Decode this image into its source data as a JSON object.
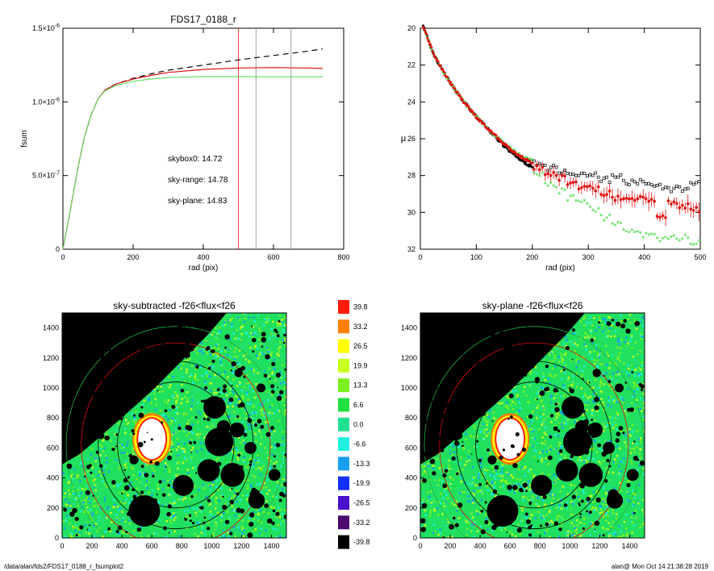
{
  "footer": {
    "left": "/data/alan/fds2/FDS17_0188_r_fsumplot2",
    "right": "alan@  Mon Oct 14 21:38:28 2019"
  },
  "colors": {
    "sky_range": "#e01010",
    "sky_plane": "#66e066",
    "skybox0": "#000000",
    "image_bg": "#000000"
  },
  "chart_data": [
    {
      "type": "line",
      "title": "FDS17_0188_r",
      "xlabel": "rad (pix)",
      "ylabel": "fsum",
      "xlim": [
        0,
        800
      ],
      "ylim": [
        0,
        1.5e-06
      ],
      "x_ticks": [
        "0",
        "200",
        "400",
        "600",
        "800"
      ],
      "y_ticks": [
        {
          "value": 0,
          "mant": "0",
          "exp": ""
        },
        {
          "value": 5e-07,
          "mant": "5.0×10",
          "exp": "-7"
        },
        {
          "value": 1e-06,
          "mant": "1.0×10",
          "exp": "-6"
        },
        {
          "value": 1.5e-06,
          "mant": "1.5×10",
          "exp": "-6"
        }
      ],
      "annotations": [
        {
          "text": "skybox0: 14.72",
          "color": "#000000"
        },
        {
          "text": "sky-range: 14.78",
          "color": "#e01010"
        },
        {
          "text": "sky-plane: 14.83",
          "color": "#66e066"
        }
      ],
      "vlines": [
        {
          "x": 500,
          "color": "#e01010"
        },
        {
          "x": 550,
          "color": "#888888"
        },
        {
          "x": 650,
          "color": "#888888"
        }
      ],
      "series": [
        {
          "style": "dashed",
          "color": "#000000",
          "x": [
            0,
            20,
            40,
            60,
            80,
            100,
            120,
            150,
            200,
            250,
            300,
            400,
            500,
            600,
            700,
            740
          ],
          "y": [
            0,
            2.5e-07,
            5.2e-07,
            7.5e-07,
            9.1e-07,
            1.02e-06,
            1.08e-06,
            1.12e-06,
            1.16e-06,
            1.19e-06,
            1.215e-06,
            1.25e-06,
            1.285e-06,
            1.315e-06,
            1.345e-06,
            1.36e-06
          ]
        },
        {
          "style": "solid",
          "color": "#e01010",
          "x": [
            0,
            20,
            40,
            60,
            80,
            100,
            120,
            150,
            200,
            250,
            300,
            400,
            500,
            600,
            700,
            740
          ],
          "y": [
            0,
            2.5e-07,
            5.2e-07,
            7.5e-07,
            9.1e-07,
            1.02e-06,
            1.08e-06,
            1.12e-06,
            1.155e-06,
            1.18e-06,
            1.2e-06,
            1.22e-06,
            1.23e-06,
            1.233e-06,
            1.23e-06,
            1.227e-06
          ]
        },
        {
          "style": "solid",
          "color": "#66e066",
          "x": [
            0,
            20,
            40,
            60,
            80,
            100,
            120,
            150,
            200,
            250,
            300,
            400,
            500,
            600,
            700,
            740
          ],
          "y": [
            0,
            2.5e-07,
            5.2e-07,
            7.5e-07,
            9.1e-07,
            1.02e-06,
            1.075e-06,
            1.11e-06,
            1.14e-06,
            1.155e-06,
            1.165e-06,
            1.172e-06,
            1.172e-06,
            1.17e-06,
            1.17e-06,
            1.17e-06
          ]
        }
      ]
    },
    {
      "type": "scatter",
      "title": "",
      "xlabel": "rad (pix)",
      "ylabel": "μ",
      "xlim": [
        0,
        500
      ],
      "ylim": [
        32,
        20
      ],
      "x_ticks": [
        "0",
        "100",
        "200",
        "300",
        "400",
        "500"
      ],
      "y_ticks": [
        "20",
        "22",
        "24",
        "26",
        "28",
        "30",
        "32"
      ],
      "profile": {
        "x": [
          5,
          25,
          50,
          75,
          100,
          125,
          150,
          175,
          200
        ],
        "y": [
          19.9,
          21.5,
          22.8,
          23.9,
          24.8,
          25.6,
          26.3,
          26.9,
          27.3
        ]
      },
      "series": [
        {
          "marker": "square",
          "color": "#000000",
          "x": [
            210,
            230,
            250,
            270,
            290,
            310,
            330,
            350,
            370,
            390,
            410,
            430,
            450,
            470,
            490
          ],
          "y": [
            27.3,
            27.6,
            27.7,
            27.9,
            27.9,
            28.0,
            28.2,
            28.1,
            28.4,
            28.3,
            28.5,
            28.6,
            28.7,
            28.7,
            28.5
          ]
        },
        {
          "marker": "circle-errbar",
          "color": "#e01010",
          "x": [
            210,
            230,
            250,
            270,
            290,
            310,
            330,
            350,
            370,
            390,
            410,
            430,
            450,
            470,
            490
          ],
          "y": [
            27.6,
            27.9,
            28.1,
            28.4,
            28.6,
            28.7,
            29.0,
            29.2,
            29.1,
            29.3,
            29.4,
            30.2,
            29.4,
            29.7,
            29.8
          ]
        },
        {
          "marker": "circle",
          "color": "#66e066",
          "x": [
            210,
            230,
            250,
            270,
            290,
            310,
            330,
            350,
            370,
            390,
            410,
            430,
            450,
            470,
            490
          ],
          "y": [
            28.0,
            28.4,
            28.8,
            29.2,
            29.5,
            29.8,
            30.3,
            30.6,
            30.9,
            31.2,
            31.1,
            31.5,
            31.3,
            31.4,
            31.6
          ]
        }
      ]
    },
    {
      "type": "heatmap",
      "title": "sky-subtracted -f26<flux<f26",
      "xlim": [
        0,
        1500
      ],
      "ylim": [
        0,
        1500
      ],
      "x_ticks": [
        "0",
        "200",
        "400",
        "600",
        "800",
        "1000",
        "1200",
        "1400"
      ],
      "y_ticks": [
        "0",
        "200",
        "400",
        "600",
        "800",
        "1000",
        "1200",
        "1400"
      ]
    },
    {
      "type": "heatmap",
      "title": "sky-plane -f26<flux<f26",
      "xlim": [
        0,
        1500
      ],
      "ylim": [
        0,
        1500
      ],
      "x_ticks": [
        "0",
        "200",
        "400",
        "600",
        "800",
        "1000",
        "1200",
        "1400"
      ],
      "y_ticks": [
        "0",
        "200",
        "400",
        "600",
        "800",
        "1000",
        "1200",
        "1400"
      ]
    }
  ],
  "colorbar": {
    "labels": [
      "39.8",
      "33.2",
      "26.5",
      "19.9",
      "13.3",
      "6.6",
      "0.0",
      "-6.6",
      "-13.3",
      "-19.9",
      "-26.5",
      "-33.2",
      "-39.8"
    ],
    "colors": [
      "#ff1a0a",
      "#ff7f00",
      "#ffff00",
      "#c8ff20",
      "#7df020",
      "#20e040",
      "#20e090",
      "#20f0e0",
      "#18a0f0",
      "#1430ff",
      "#4a10c8",
      "#4a0a6e",
      "#000000"
    ]
  },
  "galaxy": {
    "center": [
      760,
      620
    ],
    "mask_ellipse_radii": [
      1.0,
      1.33,
      1.62,
      1.88
    ],
    "ellipse_colors": [
      "#000000",
      "#000000",
      "#e01010",
      "#20b040"
    ],
    "masked_stars": [
      {
        "x": 550,
        "y": 180,
        "r": 105
      },
      {
        "x": 810,
        "y": 350,
        "r": 70
      },
      {
        "x": 1050,
        "y": 640,
        "r": 95
      },
      {
        "x": 980,
        "y": 450,
        "r": 75
      },
      {
        "x": 1140,
        "y": 420,
        "r": 80
      },
      {
        "x": 1020,
        "y": 870,
        "r": 75
      },
      {
        "x": 1080,
        "y": 740,
        "r": 45
      },
      {
        "x": 1170,
        "y": 720,
        "r": 50
      },
      {
        "x": 1260,
        "y": 600,
        "r": 40
      },
      {
        "x": 1300,
        "y": 250,
        "r": 55
      },
      {
        "x": 1420,
        "y": 420,
        "r": 40
      },
      {
        "x": 1290,
        "y": 290,
        "r": 35
      },
      {
        "x": 480,
        "y": 520,
        "r": 30
      },
      {
        "x": 1180,
        "y": 1100,
        "r": 28
      },
      {
        "x": 1330,
        "y": 1000,
        "r": 30
      },
      {
        "x": 260,
        "y": 680,
        "r": 22
      }
    ]
  }
}
